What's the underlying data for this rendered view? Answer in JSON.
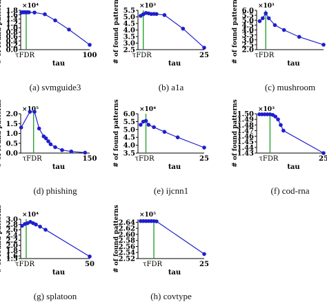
{
  "chart_data": [
    {
      "type": "line",
      "caption": "(a) svmguide3",
      "ylabel": "# of found patterns",
      "xlabel": "tau",
      "xmarker_label": "τFDR",
      "xmax_label": "100",
      "exponent_label": "×10⁴",
      "ylim": [
        0.0,
        1.8
      ],
      "yticks": [
        "0.0",
        "0.2",
        "0.4",
        "0.6",
        "0.8",
        "1.0",
        "1.2",
        "1.4",
        "1.6",
        "1.8"
      ],
      "x": [
        1,
        2,
        3,
        4,
        5,
        6,
        7,
        8,
        9,
        10,
        11,
        12,
        20,
        35,
        50,
        70,
        100
      ],
      "y": [
        1.7,
        1.71,
        1.71,
        1.71,
        1.71,
        1.71,
        1.71,
        1.71,
        1.71,
        1.71,
        1.71,
        1.71,
        1.7,
        1.62,
        1.34,
        0.92,
        0.22
      ],
      "xmax": 100,
      "tau_fdr": 8
    },
    {
      "type": "line",
      "caption": "(b) a1a",
      "ylabel": "# of found patterns",
      "xlabel": "tau",
      "xmarker_label": "τFDR",
      "xmax_label": "25",
      "exponent_label": "×10³",
      "ylim": [
        2.5,
        5.5
      ],
      "yticks": [
        "2.5",
        "3.0",
        "3.5",
        "4.0",
        "4.5",
        "5.0",
        "5.5"
      ],
      "x": [
        1,
        2,
        3,
        4,
        5,
        6,
        7,
        10,
        17,
        25
      ],
      "y": [
        5.08,
        5.2,
        5.3,
        5.27,
        5.22,
        5.23,
        5.22,
        5.14,
        4.1,
        2.65
      ],
      "xmax": 25,
      "tau_fdr": 2
    },
    {
      "type": "line",
      "caption": "(c) mushroom",
      "ylabel": "# of found patterns",
      "xlabel": "tau",
      "xmarker_label": "τFDR",
      "xmax_label": "",
      "exponent_label": "×10¹",
      "ylim": [
        2.0,
        6.0
      ],
      "yticks": [
        "2.0",
        "2.5",
        "3.0",
        "3.5",
        "4.0",
        "4.5",
        "5.0",
        "5.5",
        "6.0"
      ],
      "x": [
        1,
        2,
        3,
        4,
        6,
        9,
        14,
        22
      ],
      "y": [
        4.9,
        5.2,
        5.7,
        5.2,
        4.5,
        4.0,
        3.3,
        2.5
      ],
      "xmax": 22,
      "tau_fdr": 3
    },
    {
      "type": "line",
      "caption": "(d) phishing",
      "ylabel": "# of found patterns",
      "xlabel": "tau",
      "xmarker_label": "τFDR",
      "xmax_label": "150",
      "exponent_label": "×10⁵",
      "ylim": [
        0.0,
        2.0
      ],
      "yticks": [
        "0.0",
        "0.5",
        "1.0",
        "1.5",
        "2.0"
      ],
      "x": [
        1,
        20,
        30,
        40,
        50,
        55,
        60,
        65,
        75,
        90,
        110,
        140
      ],
      "y": [
        1.3,
        2.1,
        2.1,
        1.25,
        0.85,
        0.75,
        0.6,
        0.45,
        0.3,
        0.15,
        0.08,
        0.02
      ],
      "xmax": 150,
      "tau_fdr": 28
    },
    {
      "type": "line",
      "caption": "(e) ijcnn1",
      "ylabel": "# of found patterns",
      "xlabel": "tau",
      "xmarker_label": "τFDR",
      "xmax_label": "25",
      "exponent_label": "×10⁴",
      "ylim": [
        3.5,
        6.0
      ],
      "yticks": [
        "3.5",
        "4.0",
        "4.5",
        "5.0",
        "5.5",
        "6.0"
      ],
      "x": [
        1,
        2,
        3,
        4,
        6,
        10,
        15,
        25
      ],
      "y": [
        5.3,
        5.5,
        5.55,
        5.3,
        5.15,
        4.85,
        4.5,
        3.85
      ],
      "xmax": 25,
      "tau_fdr": 3
    },
    {
      "type": "line",
      "caption": "(f) cod-rna",
      "ylabel": "# of found patterns",
      "xlabel": "tau",
      "xmarker_label": "τFDR",
      "xmax_label": "25",
      "exponent_label": "×10³",
      "ylim": [
        1.43,
        1.5
      ],
      "yticks": [
        "1.43",
        "1.44",
        "1.45",
        "1.46",
        "1.47",
        "1.48",
        "1.49",
        "1.50"
      ],
      "x": [
        1,
        2,
        3,
        4,
        5,
        6,
        7,
        8,
        9,
        10,
        25
      ],
      "y": [
        1.499,
        1.499,
        1.499,
        1.499,
        1.499,
        1.498,
        1.495,
        1.49,
        1.48,
        1.47,
        1.43
      ],
      "xmax": 25,
      "tau_fdr": 5
    },
    {
      "type": "line",
      "caption": "(g) splatoon",
      "ylabel": "# of found patterns",
      "xlabel": "tau",
      "xmarker_label": "τFDR",
      "xmax_label": "50",
      "exponent_label": "×10⁴",
      "ylim": [
        1.5,
        3.0
      ],
      "yticks": [
        "1.5",
        "1.6",
        "1.8",
        "2.0",
        "2.2",
        "2.4",
        "2.6",
        "2.8",
        "3.0"
      ],
      "x": [
        1,
        3,
        5,
        7,
        9,
        11,
        14,
        18,
        50
      ],
      "y": [
        2.75,
        2.82,
        2.85,
        2.9,
        2.85,
        2.8,
        2.72,
        2.6,
        1.58
      ],
      "xmax": 50,
      "tau_fdr": 4
    },
    {
      "type": "line",
      "caption": "(h) covtype",
      "ylabel": "# of found patterns",
      "xlabel": "tau",
      "xmarker_label": "τFDR",
      "xmax_label": "25",
      "exponent_label": "×10⁵",
      "ylim": [
        2.52,
        2.65
      ],
      "yticks": [
        "2.52",
        "2.54",
        "2.56",
        "2.58",
        "2.60",
        "2.62",
        "2.64"
      ],
      "x": [
        1,
        2,
        3,
        4,
        5,
        6,
        7,
        25
      ],
      "y": [
        2.644,
        2.644,
        2.644,
        2.644,
        2.644,
        2.644,
        2.643,
        2.535
      ],
      "xmax": 25,
      "tau_fdr": 6
    }
  ],
  "colors": {
    "line": "#1f1fcc",
    "marker": "#1f1fcc",
    "threshold": "#2aa02a",
    "axis": "#000000"
  }
}
